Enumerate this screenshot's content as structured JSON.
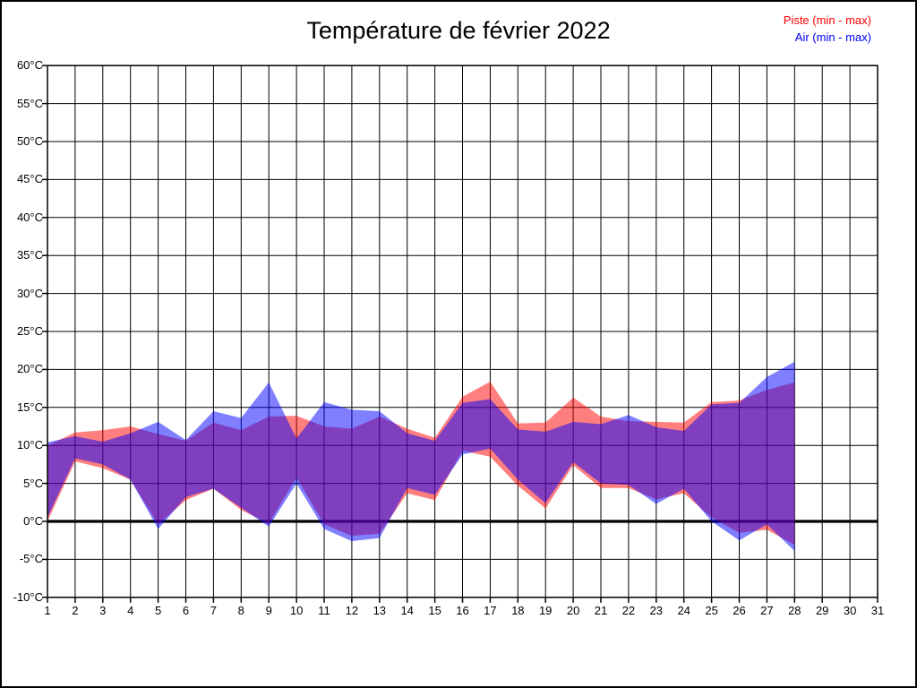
{
  "title": "Température de février 2022",
  "legend": {
    "items": [
      {
        "label": "Piste (min - max)",
        "color": "#ff0000"
      },
      {
        "label": "Air (min - max)",
        "color": "#0000ff"
      }
    ]
  },
  "chart_data": {
    "type": "area",
    "title": "Température de février 2022",
    "xlabel": "",
    "ylabel": "",
    "xlim": [
      1,
      31
    ],
    "ylim": [
      -10,
      60
    ],
    "grid": true,
    "legend_position": "top-right",
    "zero_line_value": 0,
    "x_days": [
      1,
      2,
      3,
      4,
      5,
      6,
      7,
      8,
      9,
      10,
      11,
      12,
      13,
      14,
      15,
      16,
      17,
      18,
      19,
      20,
      21,
      22,
      23,
      24,
      25,
      26,
      27,
      28
    ],
    "series": [
      {
        "name": "Piste (min - max)",
        "color": "#ff0000",
        "fill": "rgba(255,0,0,0.5)",
        "min": [
          0.0,
          7.9,
          7.0,
          5.5,
          -0.4,
          2.8,
          4.3,
          1.5,
          -0.3,
          5.8,
          -0.4,
          -1.9,
          -1.6,
          3.7,
          2.8,
          9.3,
          8.5,
          4.7,
          1.7,
          7.4,
          4.4,
          4.4,
          2.9,
          3.7,
          0.5,
          -1.5,
          -1.1,
          -3.1
        ],
        "max": [
          10.0,
          11.7,
          12.0,
          12.5,
          11.5,
          10.6,
          13.0,
          12.0,
          13.8,
          13.9,
          12.5,
          12.2,
          13.8,
          12.2,
          11.0,
          16.4,
          18.4,
          12.9,
          13.0,
          16.3,
          13.8,
          13.2,
          13.1,
          13.0,
          15.7,
          15.9,
          17.3,
          18.3
        ]
      },
      {
        "name": "Air (min - max)",
        "color": "#0000ff",
        "fill": "rgba(0,0,255,0.5)",
        "min": [
          0.5,
          8.3,
          7.5,
          5.5,
          -1.0,
          3.2,
          4.3,
          1.8,
          -0.7,
          5.0,
          -1.0,
          -2.6,
          -2.2,
          4.4,
          3.5,
          8.8,
          9.6,
          5.5,
          2.4,
          7.8,
          5.0,
          4.8,
          2.3,
          4.3,
          0.0,
          -2.5,
          -0.4,
          -3.9
        ],
        "max": [
          10.4,
          11.2,
          10.5,
          11.6,
          13.1,
          10.7,
          14.5,
          13.6,
          18.3,
          10.9,
          15.7,
          14.7,
          14.5,
          11.6,
          10.6,
          15.6,
          16.1,
          12.1,
          11.8,
          13.1,
          12.8,
          14.0,
          12.4,
          11.9,
          15.4,
          15.6,
          19.0,
          21.0
        ]
      }
    ],
    "x_ticks": [
      1,
      2,
      3,
      4,
      5,
      6,
      7,
      8,
      9,
      10,
      11,
      12,
      13,
      14,
      15,
      16,
      17,
      18,
      19,
      20,
      21,
      22,
      23,
      24,
      25,
      26,
      27,
      28,
      29,
      30,
      31
    ],
    "y_ticks": [
      {
        "value": 60,
        "label": "60°C"
      },
      {
        "value": 55,
        "label": "55°C"
      },
      {
        "value": 50,
        "label": "50°C"
      },
      {
        "value": 45,
        "label": "45°C"
      },
      {
        "value": 40,
        "label": "40°C"
      },
      {
        "value": 35,
        "label": "35°C"
      },
      {
        "value": 30,
        "label": "30°C"
      },
      {
        "value": 25,
        "label": "25°C"
      },
      {
        "value": 20,
        "label": "20°C"
      },
      {
        "value": 15,
        "label": "15°C"
      },
      {
        "value": 10,
        "label": "10°C"
      },
      {
        "value": 5,
        "label": "5°C"
      },
      {
        "value": 0,
        "label": "0°C"
      },
      {
        "value": -5,
        "label": "-5°C"
      },
      {
        "value": -10,
        "label": "-10°C"
      }
    ]
  }
}
